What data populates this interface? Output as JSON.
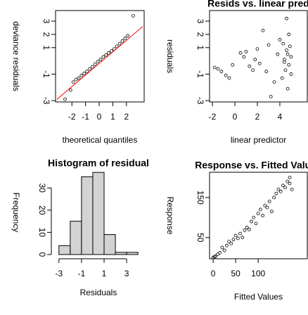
{
  "chart_data": [
    {
      "type": "scatter",
      "xlabel": "theoretical quantiles",
      "ylabel": "deviance residuals",
      "frame": true,
      "xlim": [
        -3.2,
        3.3
      ],
      "xticks": [
        -2,
        -1,
        0,
        1,
        2
      ],
      "ylim": [
        -3.1,
        3.8
      ],
      "yticks": [
        -3,
        -1,
        1,
        2,
        3
      ],
      "series": [
        {
          "color": "#000000",
          "x": [
            -2.5,
            -2.1,
            -1.9,
            -1.7,
            -1.5,
            -1.3,
            -1.1,
            -0.9,
            -0.7,
            -0.5,
            -0.3,
            -0.1,
            0.1,
            0.3,
            0.5,
            0.7,
            0.9,
            1.1,
            1.3,
            1.5,
            1.7,
            1.9,
            2.1,
            2.5
          ],
          "values": [
            -2.9,
            -2.2,
            -1.6,
            -1.4,
            -1.3,
            -1.1,
            -0.95,
            -0.8,
            -0.6,
            -0.45,
            -0.25,
            -0.05,
            0.1,
            0.3,
            0.45,
            0.6,
            0.75,
            0.9,
            1.1,
            1.3,
            1.5,
            1.7,
            1.9,
            3.4
          ]
        }
      ],
      "reference_line": {
        "color": "#ff0000",
        "x": [
          -3.1,
          3.2
        ],
        "values": [
          -2.9,
          2.6
        ]
      }
    },
    {
      "type": "scatter",
      "title": "Resids vs. linear pred",
      "xlabel": "linear predictor",
      "ylabel": "residuals",
      "frame": true,
      "xlim": [
        -2.25,
        6.44
      ],
      "xticks": [
        -2,
        0,
        2,
        4
      ],
      "ylim": [
        -3.1,
        3.8
      ],
      "yticks": [
        -3,
        -1,
        1,
        2,
        3
      ],
      "series": [
        {
          "color": "#000000",
          "x": [
            -1.8,
            -1.5,
            -1.2,
            -0.8,
            -0.5,
            0.5,
            0.8,
            1.0,
            1.3,
            1.6,
            2.0,
            2.5,
            2.8,
            3.0,
            3.2,
            3.5,
            3.8,
            4.0,
            4.2,
            4.4,
            4.5,
            4.6,
            4.7,
            4.8,
            4.9,
            5.0,
            4.3,
            4.6,
            4.8,
            5.0,
            4.4,
            4.7,
            -0.2,
            1.8,
            2.2
          ],
          "values": [
            -0.5,
            -0.6,
            -0.8,
            -1.1,
            -1.3,
            0.6,
            0.3,
            0.7,
            -0.4,
            -0.7,
            0.9,
            2.3,
            -0.8,
            1.2,
            -2.7,
            -1.6,
            0.5,
            1.6,
            -1.3,
            0.1,
            -0.7,
            0.8,
            -2.1,
            -0.3,
            1.1,
            -1.0,
            1.3,
            3.2,
            2.0,
            0.3,
            -0.1,
            0.5,
            -0.3,
            0.1,
            -0.2
          ]
        }
      ]
    },
    {
      "type": "histogram",
      "title": "Histogram of residual",
      "xlabel": "Residuals",
      "ylabel": "Frequency",
      "frame": false,
      "color": "#d3d3d3",
      "xlim": [
        -3.3,
        4.3
      ],
      "xticks": [
        -3,
        -1,
        1,
        3
      ],
      "ylim": [
        0,
        38
      ],
      "yticks": [
        0,
        10,
        20,
        30
      ],
      "bins": [
        -3,
        -2,
        -1,
        0,
        1,
        2,
        3,
        4
      ],
      "values": [
        4,
        15,
        35,
        37,
        9,
        1,
        1
      ]
    },
    {
      "type": "scatter",
      "title": "Response vs. Fitted Values",
      "xlabel": "Fitted Values",
      "ylabel": "Response",
      "frame": true,
      "xlim": [
        -8,
        209
      ],
      "xticks": [
        0,
        50,
        100
      ],
      "ylim": [
        -3,
        213
      ],
      "yticks": [
        50,
        150
      ],
      "series": [
        {
          "color": "#000000",
          "x": [
            0,
            3,
            5,
            10,
            15,
            20,
            25,
            30,
            35,
            40,
            45,
            50,
            55,
            60,
            65,
            70,
            75,
            80,
            85,
            90,
            95,
            100,
            105,
            110,
            115,
            120,
            125,
            130,
            135,
            140,
            145,
            150,
            155,
            160,
            165,
            170,
            175,
            170
          ],
          "values": [
            0,
            2,
            3,
            8,
            12,
            25,
            18,
            30,
            40,
            35,
            45,
            55,
            48,
            60,
            50,
            68,
            75,
            70,
            90,
            100,
            85,
            110,
            120,
            105,
            130,
            125,
            140,
            115,
            150,
            160,
            170,
            165,
            180,
            175,
            190,
            185,
            170,
            200
          ]
        }
      ]
    }
  ]
}
